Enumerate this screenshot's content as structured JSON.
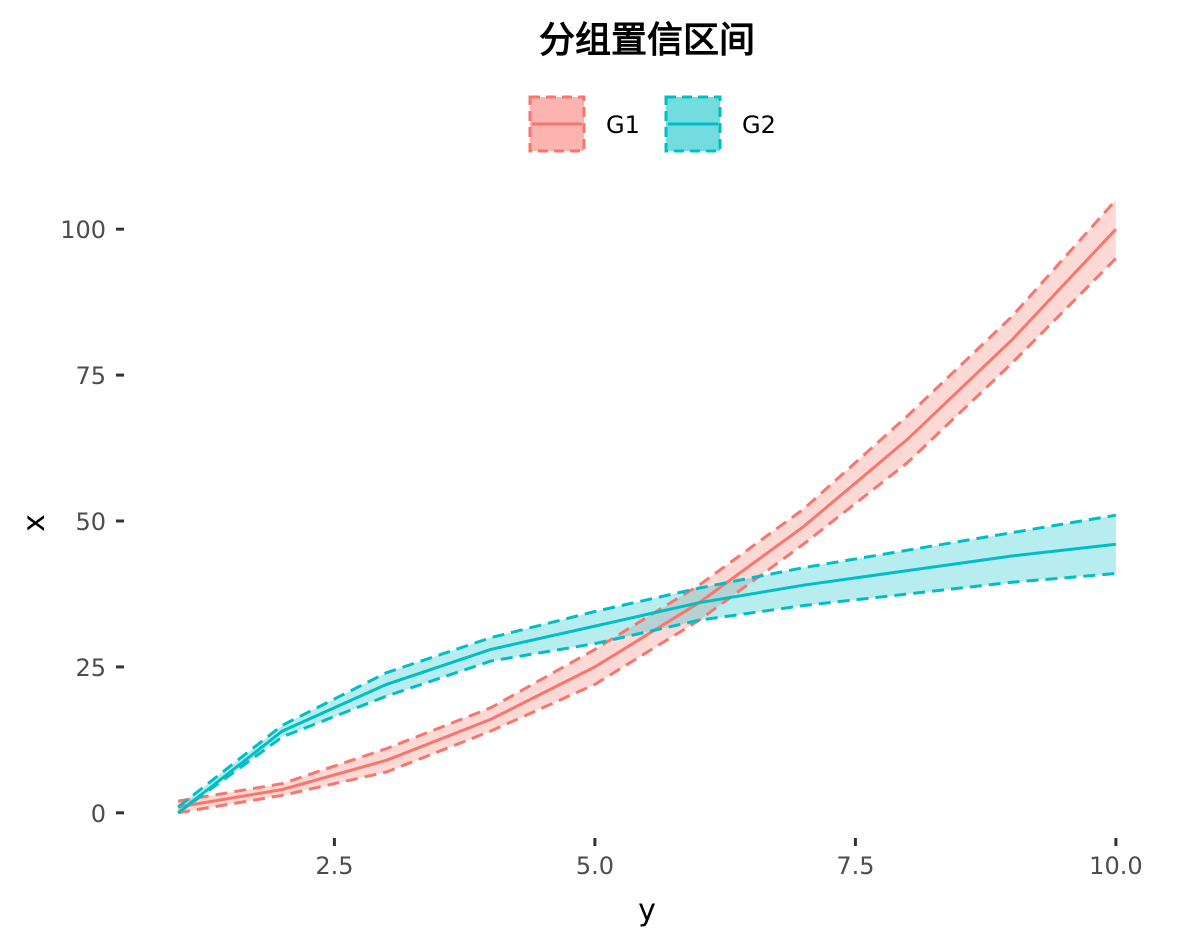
{
  "chart_data": {
    "type": "line",
    "title": "分组置信区间",
    "xlabel": "y",
    "ylabel": "x",
    "x_ticks": [
      "2.5",
      "5.0",
      "7.5",
      "10.0"
    ],
    "y_ticks": [
      "0",
      "25",
      "50",
      "75",
      "100"
    ],
    "xlim": [
      0.5,
      10.5
    ],
    "ylim": [
      -5,
      105
    ],
    "grid": false,
    "legend_position": "top",
    "x": [
      1,
      2,
      3,
      4,
      5,
      6,
      7,
      8,
      9,
      10
    ],
    "series": [
      {
        "name": "G1",
        "color": "#F8766D",
        "values": [
          1,
          4,
          9,
          16,
          25,
          36,
          49,
          64,
          81,
          100
        ],
        "lower": [
          0,
          3,
          7,
          14,
          22,
          33,
          46,
          60,
          77,
          95
        ],
        "upper": [
          2,
          5,
          11,
          18,
          28,
          39,
          52,
          68,
          85,
          105
        ]
      },
      {
        "name": "G2",
        "color": "#00BFC4",
        "values": [
          0,
          14,
          22,
          28,
          32,
          36,
          39,
          41.5,
          44,
          46
        ],
        "lower": [
          0,
          13,
          20,
          26,
          29,
          33,
          35.5,
          37.5,
          39.5,
          41
        ],
        "upper": [
          1,
          15,
          24,
          30,
          34.5,
          38.5,
          42,
          45,
          48,
          51
        ]
      }
    ]
  }
}
